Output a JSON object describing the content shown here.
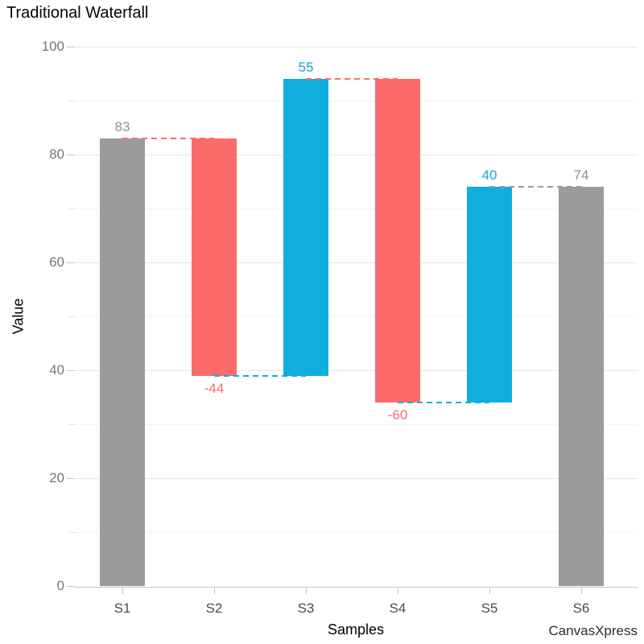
{
  "watermark": "CanvasXpress",
  "chart_data": {
    "type": "bar",
    "subtype": "waterfall",
    "title": "Traditional Waterfall",
    "xlabel": "Samples",
    "ylabel": "Value",
    "ylim": [
      0,
      100
    ],
    "y_major_ticks": [
      0,
      20,
      40,
      60,
      80,
      100
    ],
    "y_minor_ticks": [
      10,
      30,
      50,
      70,
      90
    ],
    "grid": "horizontal",
    "legend_position": "none",
    "categories": [
      "S1",
      "S2",
      "S3",
      "S4",
      "S5",
      "S6"
    ],
    "bars": [
      {
        "category": "S1",
        "from": 0,
        "to": 83,
        "label": "83",
        "role": "total",
        "label_pos": "above"
      },
      {
        "category": "S2",
        "from": 83,
        "to": 39,
        "label": "-44",
        "role": "decrease",
        "label_pos": "below"
      },
      {
        "category": "S3",
        "from": 39,
        "to": 94,
        "label": "55",
        "role": "increase",
        "label_pos": "above"
      },
      {
        "category": "S4",
        "from": 94,
        "to": 34,
        "label": "-60",
        "role": "decrease",
        "label_pos": "below"
      },
      {
        "category": "S5",
        "from": 34,
        "to": 74,
        "label": "40",
        "role": "increase",
        "label_pos": "above"
      },
      {
        "category": "S6",
        "from": 0,
        "to": 74,
        "label": "74",
        "role": "total",
        "label_pos": "above"
      }
    ],
    "connectors": [
      {
        "from_index": 0,
        "to_index": 1,
        "level": 83,
        "color_role": "decrease"
      },
      {
        "from_index": 1,
        "to_index": 2,
        "level": 39,
        "color_role": "increase"
      },
      {
        "from_index": 2,
        "to_index": 3,
        "level": 94,
        "color_role": "decrease"
      },
      {
        "from_index": 3,
        "to_index": 4,
        "level": 34,
        "color_role": "increase"
      },
      {
        "from_index": 4,
        "to_index": 5,
        "level": 74,
        "color_role": "total"
      }
    ],
    "colors": {
      "total": "#9b9b9b",
      "increase": "#10aedd",
      "decrease": "#fb6b6b",
      "total_label": "#929292",
      "increase_label": "#0fa8d6",
      "decrease_label": "#fa6a6a"
    }
  }
}
